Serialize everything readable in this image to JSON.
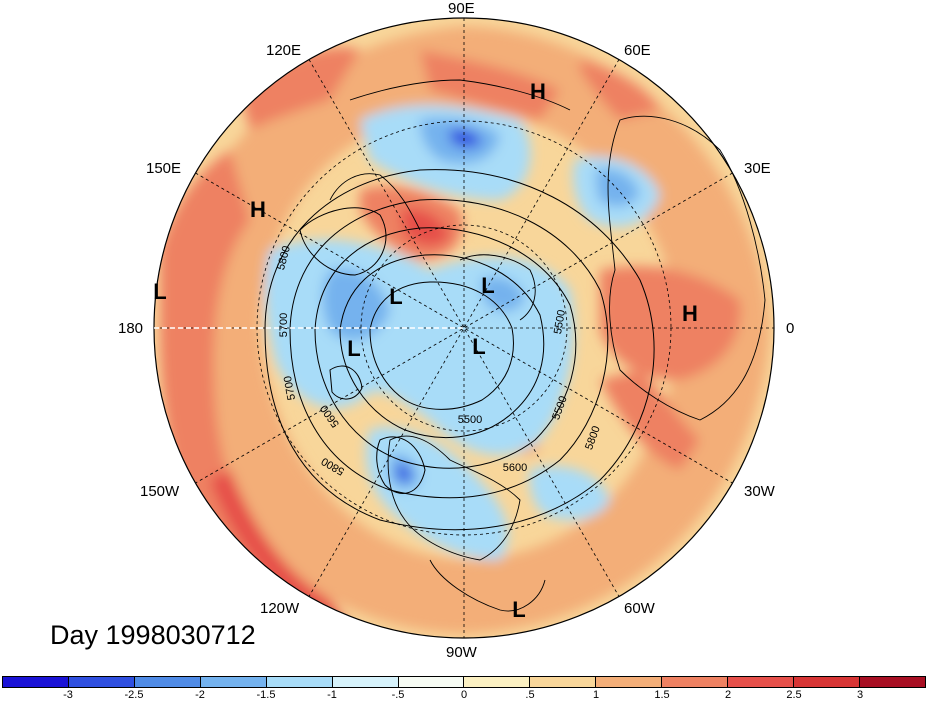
{
  "title": "Day 1998030712",
  "longitude_labels": {
    "lon_90e": "90E",
    "lon_120e": "120E",
    "lon_60e": "60E",
    "lon_150e": "150E",
    "lon_30e": "30E",
    "lon_180": "180",
    "lon_0": "0",
    "lon_150w": "150W",
    "lon_30w": "30W",
    "lon_120w": "120W",
    "lon_60w": "60W",
    "lon_90w": "90W"
  },
  "pressure_centers": [
    {
      "id": "h1",
      "label": "H"
    },
    {
      "id": "h2",
      "label": "H"
    },
    {
      "id": "h3",
      "label": "H"
    },
    {
      "id": "l1",
      "label": "L"
    },
    {
      "id": "l2",
      "label": "L"
    },
    {
      "id": "l3",
      "label": "L"
    },
    {
      "id": "l4",
      "label": "L"
    },
    {
      "id": "l5",
      "label": "L"
    },
    {
      "id": "l6",
      "label": "L"
    }
  ],
  "contour_labels": [
    "5800",
    "5700",
    "5700",
    "5600",
    "5800",
    "5500",
    "5500",
    "5600",
    "5800",
    "5500"
  ],
  "colorbar": {
    "labels": [
      "-3",
      "-2.5",
      "-2",
      "-1.5",
      "-1",
      "-.5",
      "0",
      ".5",
      "1",
      "1.5",
      "2",
      "2.5",
      "3"
    ],
    "colors": [
      "#1a12d6",
      "#2f4fe0",
      "#4f8be6",
      "#74b2ee",
      "#a8dcf8",
      "#d6f2fb",
      "#f6fbf3",
      "#fbf0c2",
      "#f8d69a",
      "#f3ae78",
      "#ee8162",
      "#e6504a",
      "#d73535",
      "#a80f23"
    ]
  },
  "palette": {
    "strong_warm": "#e6504a",
    "warm": "#ee8162",
    "mild_warm": "#f3ae78",
    "light_warm": "#f8d69a",
    "neutral": "#fbf0c2",
    "cool": "#a8dcf8",
    "mid_cool": "#74b2ee",
    "deep_cool": "#2f4fe0"
  }
}
